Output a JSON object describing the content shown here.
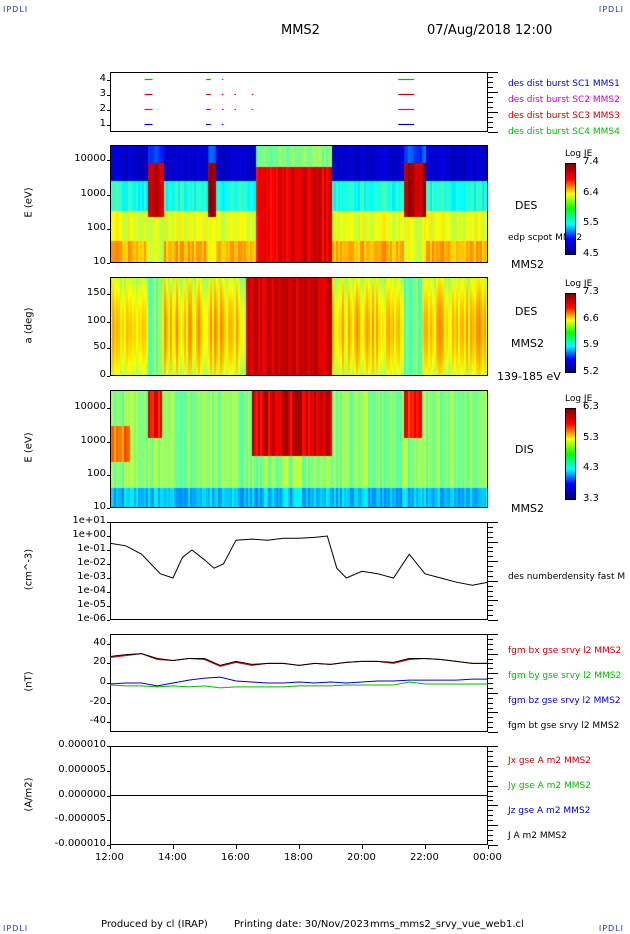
{
  "header": {
    "logo_left": "IPDLI",
    "logo_right": "IPDLI",
    "spacecraft": "MMS2",
    "datetime": "07/Aug/2018 12:00"
  },
  "footer": {
    "logo_left": "IPDLI",
    "logo_right": "IPDLI",
    "produced_by": "Produced by cl (IRAP)",
    "printing_date": "Printing date: 30/Nov/2023",
    "product": "mms_mms2_srvy_vue_web1.cl"
  },
  "colors": {
    "red": "#cc0000",
    "green": "#00bb00",
    "blue": "#0000cc",
    "magenta": "#cc00cc",
    "black": "#000000"
  },
  "chart_data": [
    {
      "type": "scatter",
      "name": "burst-intervals",
      "ylim": [
        0.5,
        4.5
      ],
      "yticks": [
        "4",
        "3",
        "2",
        "1"
      ],
      "legend": [
        {
          "label": "des dist burst SC1 MMS1",
          "color": "#0000cc"
        },
        {
          "label": "des dist burst SC2 MMS2",
          "color": "#cc00cc"
        },
        {
          "label": "des dist burst SC3 MMS3",
          "color": "#cc0000"
        },
        {
          "label": "des dist burst SC4 MMS4",
          "color": "#00bb00"
        }
      ],
      "series": [
        {
          "level": 4,
          "color": "#00bb00",
          "intervals": [
            [
              13.1,
              13.35
            ],
            [
              15.05,
              15.2
            ],
            [
              15.55,
              15.6
            ],
            [
              21.15,
              21.65
            ]
          ]
        },
        {
          "level": 3,
          "color": "#cc0000",
          "intervals": [
            [
              13.1,
              13.35
            ],
            [
              15.05,
              15.2
            ],
            [
              15.55,
              15.6
            ],
            [
              15.95,
              16.0
            ],
            [
              16.5,
              16.55
            ],
            [
              21.15,
              21.65
            ]
          ]
        },
        {
          "level": 2,
          "color": "#cc00cc",
          "intervals": [
            [
              13.1,
              13.35
            ],
            [
              15.05,
              15.2
            ],
            [
              15.55,
              15.6
            ],
            [
              15.95,
              16.0
            ],
            [
              16.5,
              16.55
            ],
            [
              21.15,
              21.65
            ]
          ]
        },
        {
          "level": 1,
          "color": "#0000cc",
          "intervals": [
            [
              13.1,
              13.35
            ],
            [
              15.05,
              15.2
            ],
            [
              15.55,
              15.6
            ],
            [
              21.15,
              21.65
            ]
          ]
        }
      ]
    },
    {
      "type": "heatmap",
      "name": "des-energy",
      "ylabel": "E (eV)",
      "yticks": [
        "10000",
        "1000",
        "100",
        "10"
      ],
      "yscale": "log",
      "label": "DES",
      "overlay_label": "edp scpot MMS2",
      "sc_label": "MMS2",
      "colorbar": {
        "title": "Log JE",
        "ticks": [
          "7.4",
          "6.4",
          "5.5",
          "4.5"
        ]
      }
    },
    {
      "type": "heatmap",
      "name": "des-pitch",
      "ylabel": "a (deg)",
      "yticks": [
        "150",
        "100",
        "50",
        "0"
      ],
      "label": "DES",
      "sc_label": "MMS2",
      "energy_range": "139-185 eV",
      "colorbar": {
        "title": "Log JE",
        "ticks": [
          "7.3",
          "6.6",
          "5.9",
          "5.2"
        ]
      }
    },
    {
      "type": "heatmap",
      "name": "dis-energy",
      "ylabel": "E (eV)",
      "yticks": [
        "10000",
        "1000",
        "100",
        "10"
      ],
      "yscale": "log",
      "label": "DIS",
      "sc_label": "MMS2",
      "colorbar": {
        "title": "Log JE",
        "ticks": [
          "6.3",
          "5.3",
          "4.3",
          "3.3"
        ]
      }
    },
    {
      "type": "line",
      "name": "density",
      "ylabel": "(cm^-3)",
      "yscale": "log",
      "yticks": [
        "1e+01",
        "1e+00",
        "1e-01",
        "1e-02",
        "1e-03",
        "1e-04",
        "1e-05",
        "1e-06"
      ],
      "legend": [
        {
          "label": "des numberdensity fast M",
          "color": "#000000"
        }
      ],
      "x": [
        12.0,
        12.5,
        13.0,
        13.3,
        13.6,
        14.0,
        14.3,
        14.6,
        15.0,
        15.3,
        15.6,
        16.0,
        16.5,
        17.0,
        17.5,
        18.0,
        18.5,
        18.9,
        19.2,
        19.5,
        20.0,
        20.5,
        21.0,
        21.5,
        22.0,
        22.5,
        23.0,
        23.5,
        24.0
      ],
      "values": [
        0.3,
        0.2,
        0.05,
        0.01,
        0.002,
        0.001,
        0.03,
        0.1,
        0.02,
        0.005,
        0.01,
        0.5,
        0.6,
        0.5,
        0.7,
        0.7,
        0.8,
        1.0,
        0.005,
        0.001,
        0.003,
        0.002,
        0.001,
        0.05,
        0.002,
        0.001,
        0.0005,
        0.0003,
        0.0005
      ]
    },
    {
      "type": "line",
      "name": "magnetic-field",
      "ylabel": "(nT)",
      "ylim": [
        -50,
        50
      ],
      "yticks": [
        "40",
        "20",
        "0",
        "-20",
        "-40"
      ],
      "legend": [
        {
          "label": "fgm bx gse srvy l2 MMS2",
          "color": "#cc0000"
        },
        {
          "label": "fgm by gse srvy l2 MMS2",
          "color": "#00bb00"
        },
        {
          "label": "fgm bz gse srvy l2 MMS2",
          "color": "#0000cc"
        },
        {
          "label": "fgm bt gse srvy l2 MMS2",
          "color": "#000000"
        }
      ],
      "x": [
        12.0,
        12.5,
        13.0,
        13.5,
        14.0,
        14.5,
        15.0,
        15.5,
        16.0,
        16.5,
        17.0,
        17.5,
        18.0,
        18.5,
        19.0,
        19.5,
        20.0,
        20.5,
        21.0,
        21.5,
        22.0,
        22.5,
        23.0,
        23.5,
        24.0
      ],
      "series": [
        {
          "name": "bx",
          "color": "#cc0000",
          "values": [
            26,
            28,
            30,
            24,
            23,
            25,
            24,
            17,
            21,
            18,
            20,
            20,
            18,
            20,
            19,
            21,
            22,
            22,
            20,
            24,
            25,
            24,
            22,
            20,
            20
          ]
        },
        {
          "name": "by",
          "color": "#00bb00",
          "values": [
            -2,
            -3,
            -3,
            -4,
            -3,
            -4,
            -3,
            -5,
            -4,
            -4,
            -4,
            -4,
            -3,
            -3,
            -3,
            -2,
            -2,
            -2,
            -2,
            1,
            -1,
            -1,
            -1,
            -1,
            -1
          ]
        },
        {
          "name": "bz",
          "color": "#0000cc",
          "values": [
            -1,
            0,
            0,
            -3,
            0,
            3,
            5,
            6,
            2,
            1,
            0,
            0,
            1,
            0,
            1,
            0,
            1,
            2,
            2,
            3,
            3,
            3,
            3,
            4,
            4
          ]
        },
        {
          "name": "bt",
          "color": "#000000",
          "values": [
            27,
            29,
            30,
            25,
            23,
            25,
            25,
            18,
            22,
            19,
            20,
            20,
            18,
            20,
            19,
            21,
            22,
            22,
            21,
            25,
            25,
            24,
            22,
            20,
            20
          ]
        }
      ]
    },
    {
      "type": "line",
      "name": "current-density",
      "ylabel": "(A/m2)",
      "ylim": [
        -1e-05,
        1e-05
      ],
      "yticks": [
        "0.000010",
        "0.000005",
        "0.000000",
        "-0.000005",
        "-0.000010"
      ],
      "legend": [
        {
          "label": "Jx gse A m2 MMS2",
          "color": "#cc0000"
        },
        {
          "label": "Jy gse A m2 MMS2",
          "color": "#00bb00"
        },
        {
          "label": "Jz gse A m2 MMS2",
          "color": "#0000cc"
        },
        {
          "label": "J A m2 MMS2",
          "color": "#000000"
        }
      ],
      "x": [
        12,
        24
      ],
      "values": [
        0,
        0
      ]
    }
  ],
  "xaxis": {
    "ticks": [
      "12:00",
      "14:00",
      "16:00",
      "18:00",
      "20:00",
      "22:00",
      "00:00"
    ]
  }
}
